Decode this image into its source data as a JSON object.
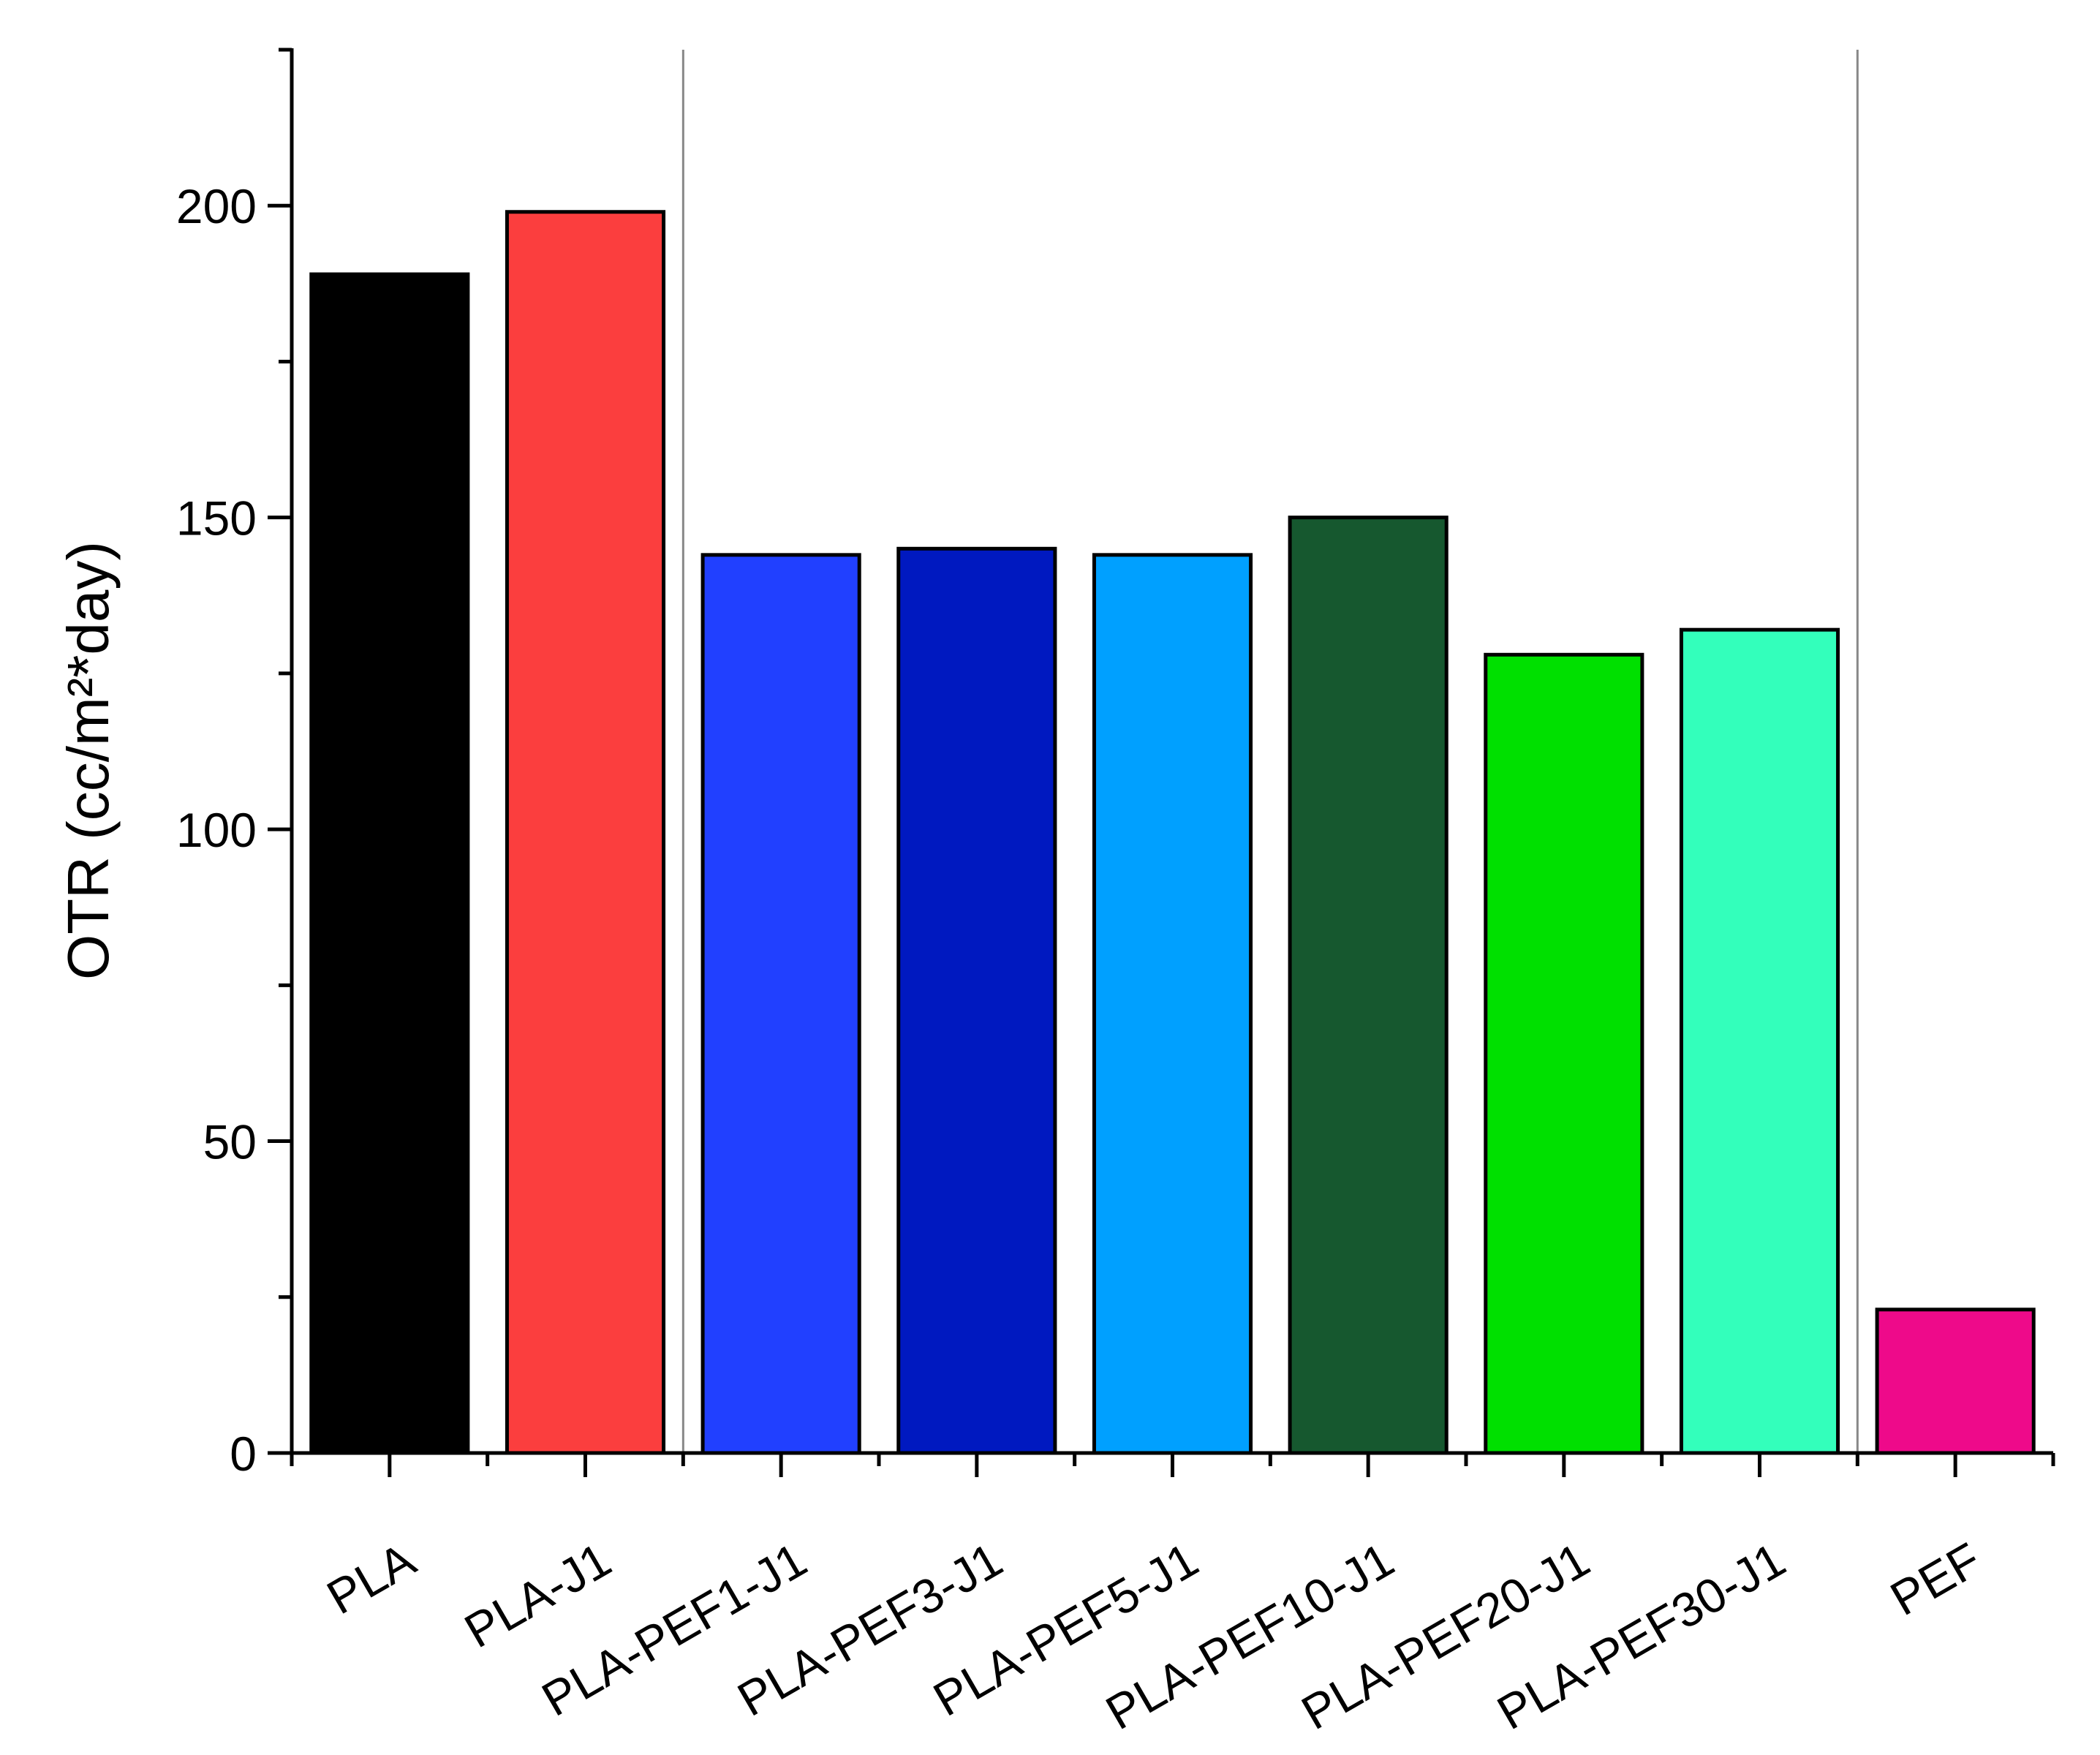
{
  "chart_data": {
    "type": "bar",
    "y_label": "OTR (cc/m²*day)",
    "categories": [
      "PLA",
      "PLA-J1",
      "PLA-PEF1-J1",
      "PLA-PEF3-J1",
      "PLA-PEF5-J1",
      "PLA-PEF10-J1",
      "PLA-PEF20-J1",
      "PLA-PEF30-J1",
      "PEF"
    ],
    "values": [
      189,
      199,
      144,
      145,
      144,
      150,
      128,
      132,
      23
    ],
    "colors": [
      "#000000",
      "#fb3e3e",
      "#2140ff",
      "#0019c0",
      "#00a0ff",
      "#16582f",
      "#00e000",
      "#33ffbb",
      "#ee0a8a"
    ],
    "ylim": [
      0,
      225
    ],
    "yticks": [
      0,
      50,
      100,
      150,
      200
    ],
    "minor_yticks": [
      25,
      75,
      125,
      175,
      225
    ],
    "separators_after": [
      1,
      7
    ],
    "grid": false
  }
}
